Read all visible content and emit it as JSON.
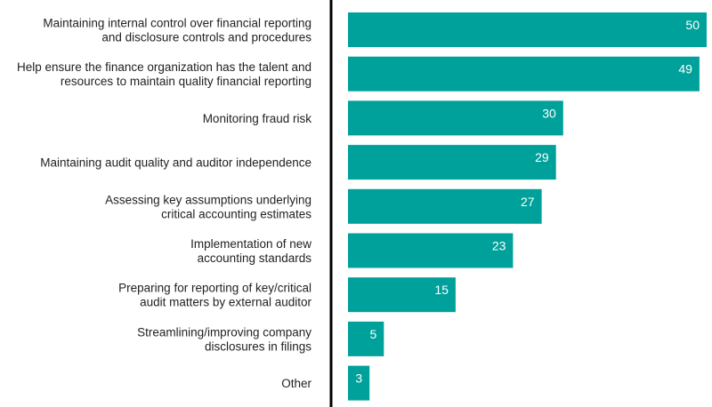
{
  "chart_data": {
    "type": "bar",
    "orientation": "horizontal",
    "title": "",
    "xlabel": "",
    "ylabel": "",
    "categories": [
      [
        "Maintaining internal control over financial reporting",
        "and disclosure controls and procedures"
      ],
      [
        "Help ensure the finance organization has the talent and",
        "resources to maintain quality financial reporting"
      ],
      [
        "Monitoring fraud risk"
      ],
      [
        "Maintaining audit quality and auditor independence"
      ],
      [
        "Assessing key assumptions underlying",
        "critical accounting estimates"
      ],
      [
        "Implementation of new",
        "accounting standards"
      ],
      [
        "Preparing for reporting of key/critical",
        "audit matters by external auditor"
      ],
      [
        "Streamlining/improving company",
        "disclosures in filings"
      ],
      [
        "Other"
      ]
    ],
    "values": [
      50,
      49,
      30,
      29,
      27,
      23,
      15,
      5,
      3
    ],
    "xlim": [
      0,
      50
    ],
    "grid": false,
    "legend": "none",
    "bar_color": "#00A19A",
    "axis_color": "#000000"
  }
}
